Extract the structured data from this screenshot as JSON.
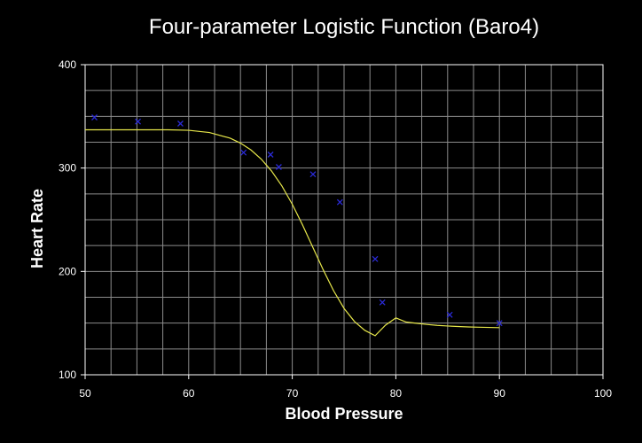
{
  "chart_data": {
    "type": "scatter",
    "title": "Four-parameter Logistic Function (Baro4)",
    "xlabel": "Blood Pressure",
    "ylabel": "Heart Rate",
    "xlim": [
      50,
      100
    ],
    "ylim": [
      100,
      400
    ],
    "x_ticks": [
      50,
      60,
      70,
      80,
      90,
      100
    ],
    "y_ticks": [
      100,
      200,
      300,
      400
    ],
    "grid": true,
    "legend": "none",
    "colors": {
      "background": "#000000",
      "grid": "#8c8c8c",
      "axes": "#ffffff",
      "points": "#2a2ad6",
      "fit_line": "#e6e64a",
      "text": "#ffffff"
    },
    "series": [
      {
        "kind": "points",
        "marker": "x",
        "x": [
          50.9,
          55.1,
          59.2,
          65.3,
          67.9,
          68.7,
          72.0,
          74.6,
          78.0,
          78.7,
          85.2,
          90.0
        ],
        "y": [
          349,
          345,
          343,
          315,
          313,
          301,
          294,
          267,
          212,
          170,
          158,
          150
        ]
      },
      {
        "kind": "line",
        "x": [
          50.0,
          52.0,
          54.0,
          56.0,
          58.0,
          60.0,
          62.0,
          64.0,
          65.0,
          66.0,
          67.0,
          68.0,
          69.0,
          70.0,
          71.0,
          72.0,
          73.0,
          74.0,
          75.0,
          76.0,
          77.0,
          78.0,
          79.0,
          80.0,
          81.0,
          82.0,
          83.0,
          84.0,
          85.0,
          86.0,
          87.0,
          88.0,
          89.0,
          90.0
        ],
        "y": [
          337.0,
          337.0,
          337.0,
          337.0,
          337.0,
          336.5,
          334.4,
          328.9,
          324.1,
          317.6,
          308.7,
          297.1,
          282.6,
          265.0,
          244.8,
          223.0,
          201.3,
          181.1,
          164.2,
          151.6,
          143.0,
          137.8,
          148.0,
          155.0,
          151.0,
          149.8,
          148.7,
          147.8,
          147.2,
          146.7,
          146.3,
          146.0,
          145.8,
          145.6
        ]
      }
    ]
  }
}
